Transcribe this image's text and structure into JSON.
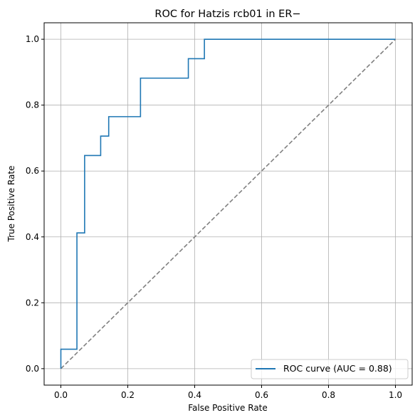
{
  "chart_data": {
    "type": "line",
    "title": "ROC for Hatzis rcb01 in ER−",
    "xlabel": "False Positive Rate",
    "ylabel": "True Positive Rate",
    "xlim": [
      -0.05,
      1.05
    ],
    "ylim": [
      -0.05,
      1.05
    ],
    "xticks": [
      "0.0",
      "0.2",
      "0.4",
      "0.6",
      "0.8",
      "1.0"
    ],
    "yticks": [
      "0.0",
      "0.2",
      "0.4",
      "0.6",
      "0.8",
      "1.0"
    ],
    "grid": true,
    "legend_position": "lower-right",
    "series": [
      {
        "name": "ROC curve (AUC = 0.88)",
        "color": "#1f77b4",
        "style": "solid",
        "x": [
          0.0,
          0.0,
          0.048,
          0.048,
          0.071,
          0.071,
          0.119,
          0.119,
          0.143,
          0.143,
          0.238,
          0.238,
          0.381,
          0.381,
          0.429,
          0.429,
          1.0
        ],
        "y": [
          0.0,
          0.059,
          0.059,
          0.412,
          0.412,
          0.647,
          0.647,
          0.706,
          0.706,
          0.765,
          0.765,
          0.882,
          0.882,
          0.941,
          0.941,
          1.0,
          1.0
        ]
      },
      {
        "name": "",
        "color": "#808080",
        "style": "dashed",
        "x": [
          0.0,
          1.0
        ],
        "y": [
          0.0,
          1.0
        ]
      }
    ]
  }
}
